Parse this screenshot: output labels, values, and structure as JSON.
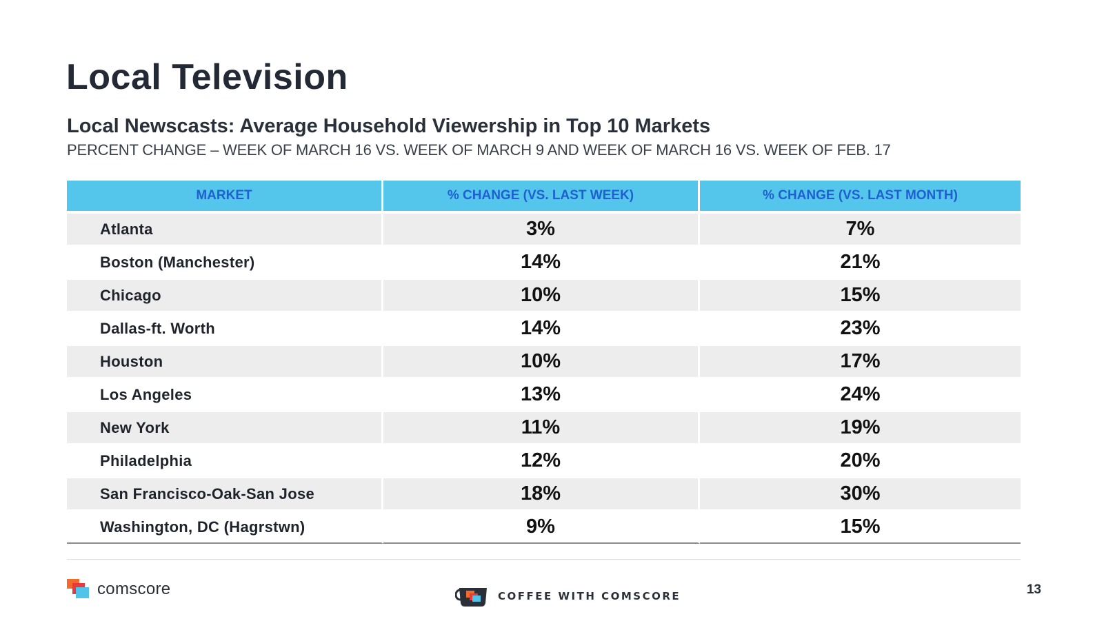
{
  "slide": {
    "title": "Local Television",
    "subtitle": "Local Newscasts: Average Household Viewership in Top 10 Markets",
    "subhead": "PERCENT CHANGE – WEEK OF MARCH 16 VS. WEEK OF MARCH 9 AND WEEK OF MARCH 16  VS. WEEK OF FEB. 17",
    "page_number": "13"
  },
  "table": {
    "headers": [
      "MARKET",
      "% CHANGE (VS. LAST WEEK)",
      "% CHANGE (VS. LAST MONTH)"
    ],
    "rows": [
      {
        "market": "Atlanta",
        "vs_last_week": "3%",
        "vs_last_month": "7%"
      },
      {
        "market": "Boston (Manchester)",
        "vs_last_week": "14%",
        "vs_last_month": "21%"
      },
      {
        "market": "Chicago",
        "vs_last_week": "10%",
        "vs_last_month": "15%"
      },
      {
        "market": "Dallas-ft. Worth",
        "vs_last_week": "14%",
        "vs_last_month": "23%"
      },
      {
        "market": "Houston",
        "vs_last_week": "10%",
        "vs_last_month": "17%"
      },
      {
        "market": "Los Angeles",
        "vs_last_week": "13%",
        "vs_last_month": "24%"
      },
      {
        "market": "New York",
        "vs_last_week": "11%",
        "vs_last_month": "19%"
      },
      {
        "market": "Philadelphia",
        "vs_last_week": "12%",
        "vs_last_month": "20%"
      },
      {
        "market": "San Francisco-Oak-San Jose",
        "vs_last_week": "18%",
        "vs_last_month": "30%"
      },
      {
        "market": "Washington, DC (Hagrstwn)",
        "vs_last_week": "9%",
        "vs_last_month": "15%"
      }
    ]
  },
  "footer": {
    "brand": "comscore",
    "series_label": "COFFEE WITH COMSCORE"
  },
  "colors": {
    "header_bg": "#55c6eb",
    "header_text": "#1f5fd0",
    "stripe": "#ededed"
  }
}
